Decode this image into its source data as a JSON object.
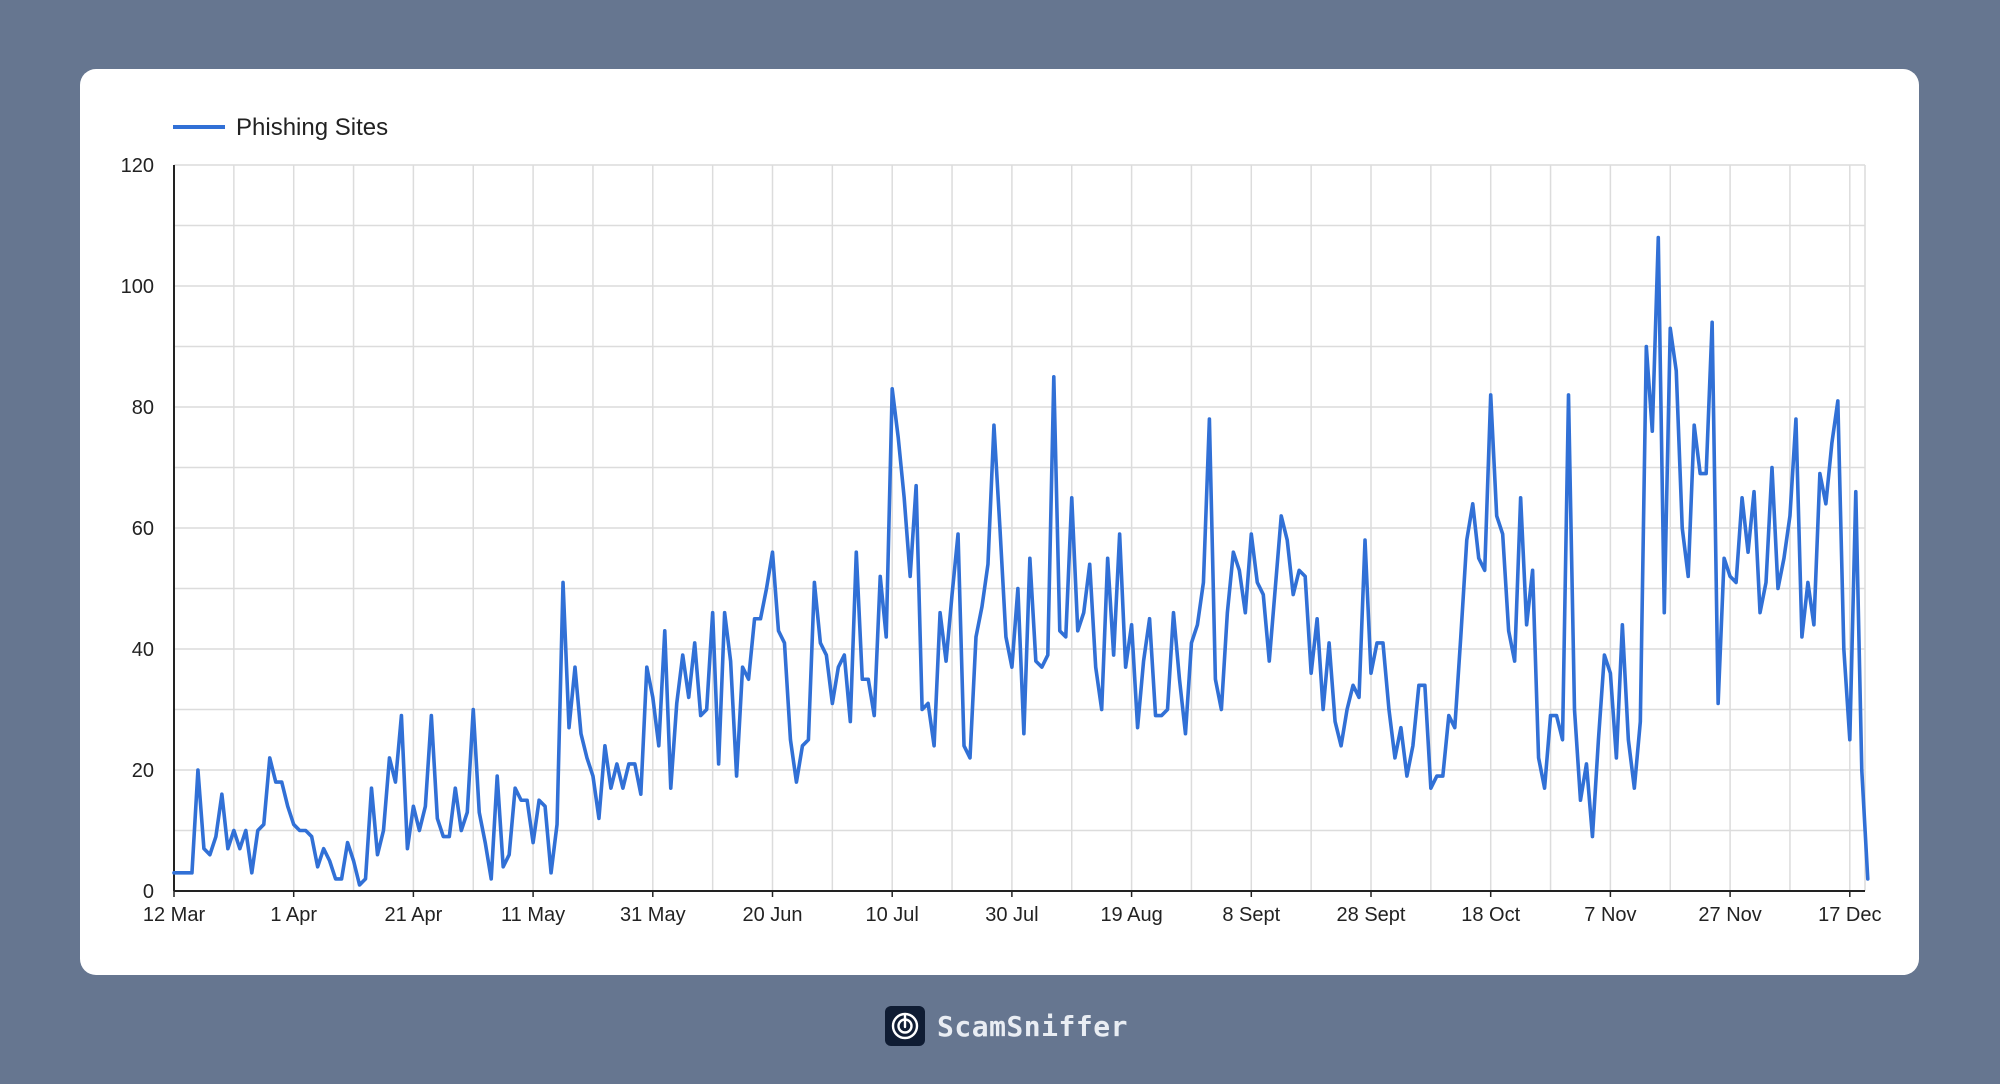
{
  "chart_data": {
    "type": "line",
    "legend": "top-left",
    "grid": true,
    "series": [
      {
        "name": "Phishing Sites",
        "color": "#3170d6",
        "values": [
          3,
          3,
          3,
          3,
          20,
          7,
          6,
          9,
          16,
          7,
          10,
          7,
          10,
          3,
          10,
          11,
          22,
          18,
          18,
          14,
          11,
          10,
          10,
          9,
          4,
          7,
          5,
          2,
          2,
          8,
          5,
          1,
          2,
          17,
          6,
          10,
          22,
          18,
          29,
          7,
          14,
          10,
          14,
          29,
          12,
          9,
          9,
          17,
          10,
          13,
          30,
          13,
          8,
          2,
          19,
          4,
          6,
          17,
          15,
          15,
          8,
          15,
          14,
          3,
          11,
          51,
          27,
          37,
          26,
          22,
          19,
          12,
          24,
          17,
          21,
          17,
          21,
          21,
          16,
          37,
          32,
          24,
          43,
          17,
          31,
          39,
          32,
          41,
          29,
          30,
          46,
          21,
          46,
          38,
          19,
          37,
          35,
          45,
          45,
          50,
          56,
          43,
          41,
          25,
          18,
          24,
          25,
          51,
          41,
          39,
          31,
          37,
          39,
          28,
          56,
          35,
          35,
          29,
          52,
          42,
          83,
          75,
          65,
          52,
          67,
          30,
          31,
          24,
          46,
          38,
          49,
          59,
          24,
          22,
          42,
          47,
          54,
          77,
          60,
          42,
          37,
          50,
          26,
          55,
          38,
          37,
          39,
          85,
          43,
          42,
          65,
          43,
          46,
          54,
          37,
          30,
          55,
          39,
          59,
          37,
          44,
          27,
          38,
          45,
          29,
          29,
          30,
          46,
          35,
          26,
          41,
          44,
          51,
          78,
          35,
          30,
          46,
          56,
          53,
          46,
          59,
          51,
          49,
          38,
          50,
          62,
          58,
          49,
          53,
          52,
          36,
          45,
          30,
          41,
          28,
          24,
          30,
          34,
          32,
          58,
          36,
          41,
          41,
          30,
          22,
          27,
          19,
          24,
          34,
          34,
          17,
          19,
          19,
          29,
          27,
          42,
          58,
          64,
          55,
          53,
          82,
          62,
          59,
          43,
          38,
          65,
          44,
          53,
          22,
          17,
          29,
          29,
          25,
          82,
          30,
          15,
          21,
          9,
          25,
          39,
          36,
          22,
          44,
          25,
          17,
          28,
          90,
          76,
          108,
          46,
          93,
          86,
          60,
          52,
          77,
          69,
          69,
          94,
          31,
          55,
          52,
          51,
          65,
          56,
          66,
          46,
          51,
          70,
          50,
          55,
          62,
          78,
          42,
          51,
          44,
          69,
          64,
          74,
          81,
          40,
          25,
          66,
          20,
          2
        ]
      }
    ],
    "x_ticks": [
      "12 Mar",
      "1 Apr",
      "21 Apr",
      "11 May",
      "31 May",
      "20 Jun",
      "10 Jul",
      "30 Jul",
      "19 Aug",
      "8 Sept",
      "28 Sept",
      "18 Oct",
      "7 Nov",
      "27 Nov",
      "17 Dec"
    ],
    "y_ticks": [
      "0",
      "20",
      "40",
      "60",
      "80",
      "100",
      "120"
    ],
    "ylim": [
      0,
      120
    ],
    "title": "",
    "xlabel": "",
    "ylabel": ""
  },
  "brand": {
    "name": "ScamSniffer",
    "icon": "radar-shield-icon"
  }
}
